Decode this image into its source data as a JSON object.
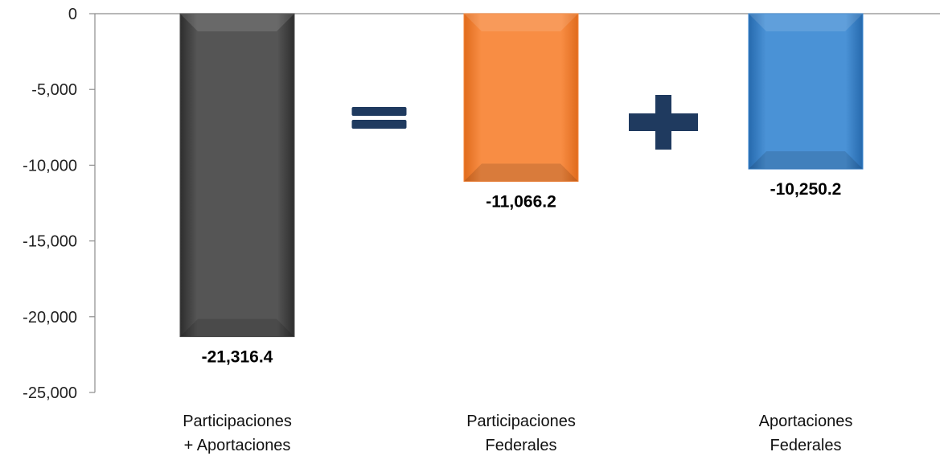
{
  "chart_data": {
    "type": "bar",
    "title": "",
    "xlabel": "",
    "ylabel": "",
    "ylim": [
      -25000,
      0
    ],
    "yticks": [
      0,
      -5000,
      -10000,
      -15000,
      -20000,
      -25000
    ],
    "ytick_labels": [
      "0",
      "-5,000",
      "-10,000",
      "-15,000",
      "-20,000",
      "-25,000"
    ],
    "categories": [
      [
        "Participaciones",
        "+ Aportaciones"
      ],
      [
        "Participaciones",
        "Federales"
      ],
      [
        "Aportaciones",
        "Federales"
      ]
    ],
    "values": [
      -21316.4,
      -11066.2,
      -10250.2
    ],
    "data_labels": [
      "-21,316.4",
      "-11,066.2",
      "-10,250.2"
    ],
    "bar_colors": [
      "#4a4a4a",
      "#f5863a",
      "#3b86cf"
    ],
    "grid": false,
    "legend": "none",
    "operators": [
      {
        "symbol": "equals",
        "between": [
          0,
          1
        ],
        "color": "#1f3a5f"
      },
      {
        "symbol": "plus",
        "between": [
          1,
          2
        ],
        "color": "#1f3a5f"
      }
    ]
  }
}
